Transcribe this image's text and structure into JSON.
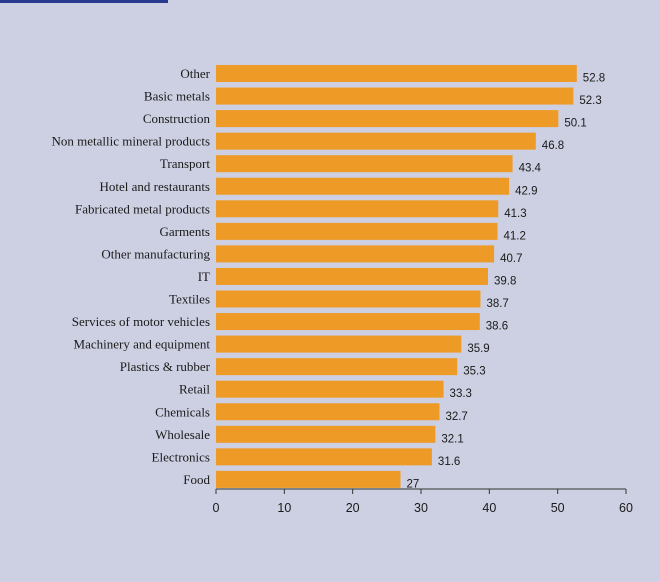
{
  "colors": {
    "background": "#cdd0e2",
    "bar": "#ee9a26",
    "accent_rule": "#2a3b8f",
    "axis": "#333333"
  },
  "chart_data": {
    "type": "bar",
    "orientation": "horizontal",
    "categories": [
      "Other",
      "Basic metals",
      "Construction",
      "Non metallic mineral products",
      "Transport",
      "Hotel and restaurants",
      "Fabricated metal products",
      "Garments",
      "Other manufacturing",
      "IT",
      "Textiles",
      "Services of motor vehicles",
      "Machinery and equipment",
      "Plastics & rubber",
      "Retail",
      "Chemicals",
      "Wholesale",
      "Electronics",
      "Food"
    ],
    "values": [
      52.8,
      52.3,
      50.1,
      46.8,
      43.4,
      42.9,
      41.3,
      41.2,
      40.7,
      39.8,
      38.7,
      38.6,
      35.9,
      35.3,
      33.3,
      32.7,
      32.1,
      31.6,
      27
    ],
    "value_labels": [
      "52.8",
      "52.3",
      "50.1",
      "46.8",
      "43.4",
      "42.9",
      "41.3",
      "41.2",
      "40.7",
      "39.8",
      "38.7",
      "38.6",
      "35.9",
      "35.3",
      "33.3",
      "32.7",
      "32.1",
      "31.6",
      "27"
    ],
    "xlim": [
      0,
      60
    ],
    "xticks": [
      0,
      10,
      20,
      30,
      40,
      50,
      60
    ],
    "xtick_labels": [
      "0",
      "10",
      "20",
      "30",
      "40",
      "50",
      "60"
    ],
    "grid": false,
    "legend": "none"
  }
}
